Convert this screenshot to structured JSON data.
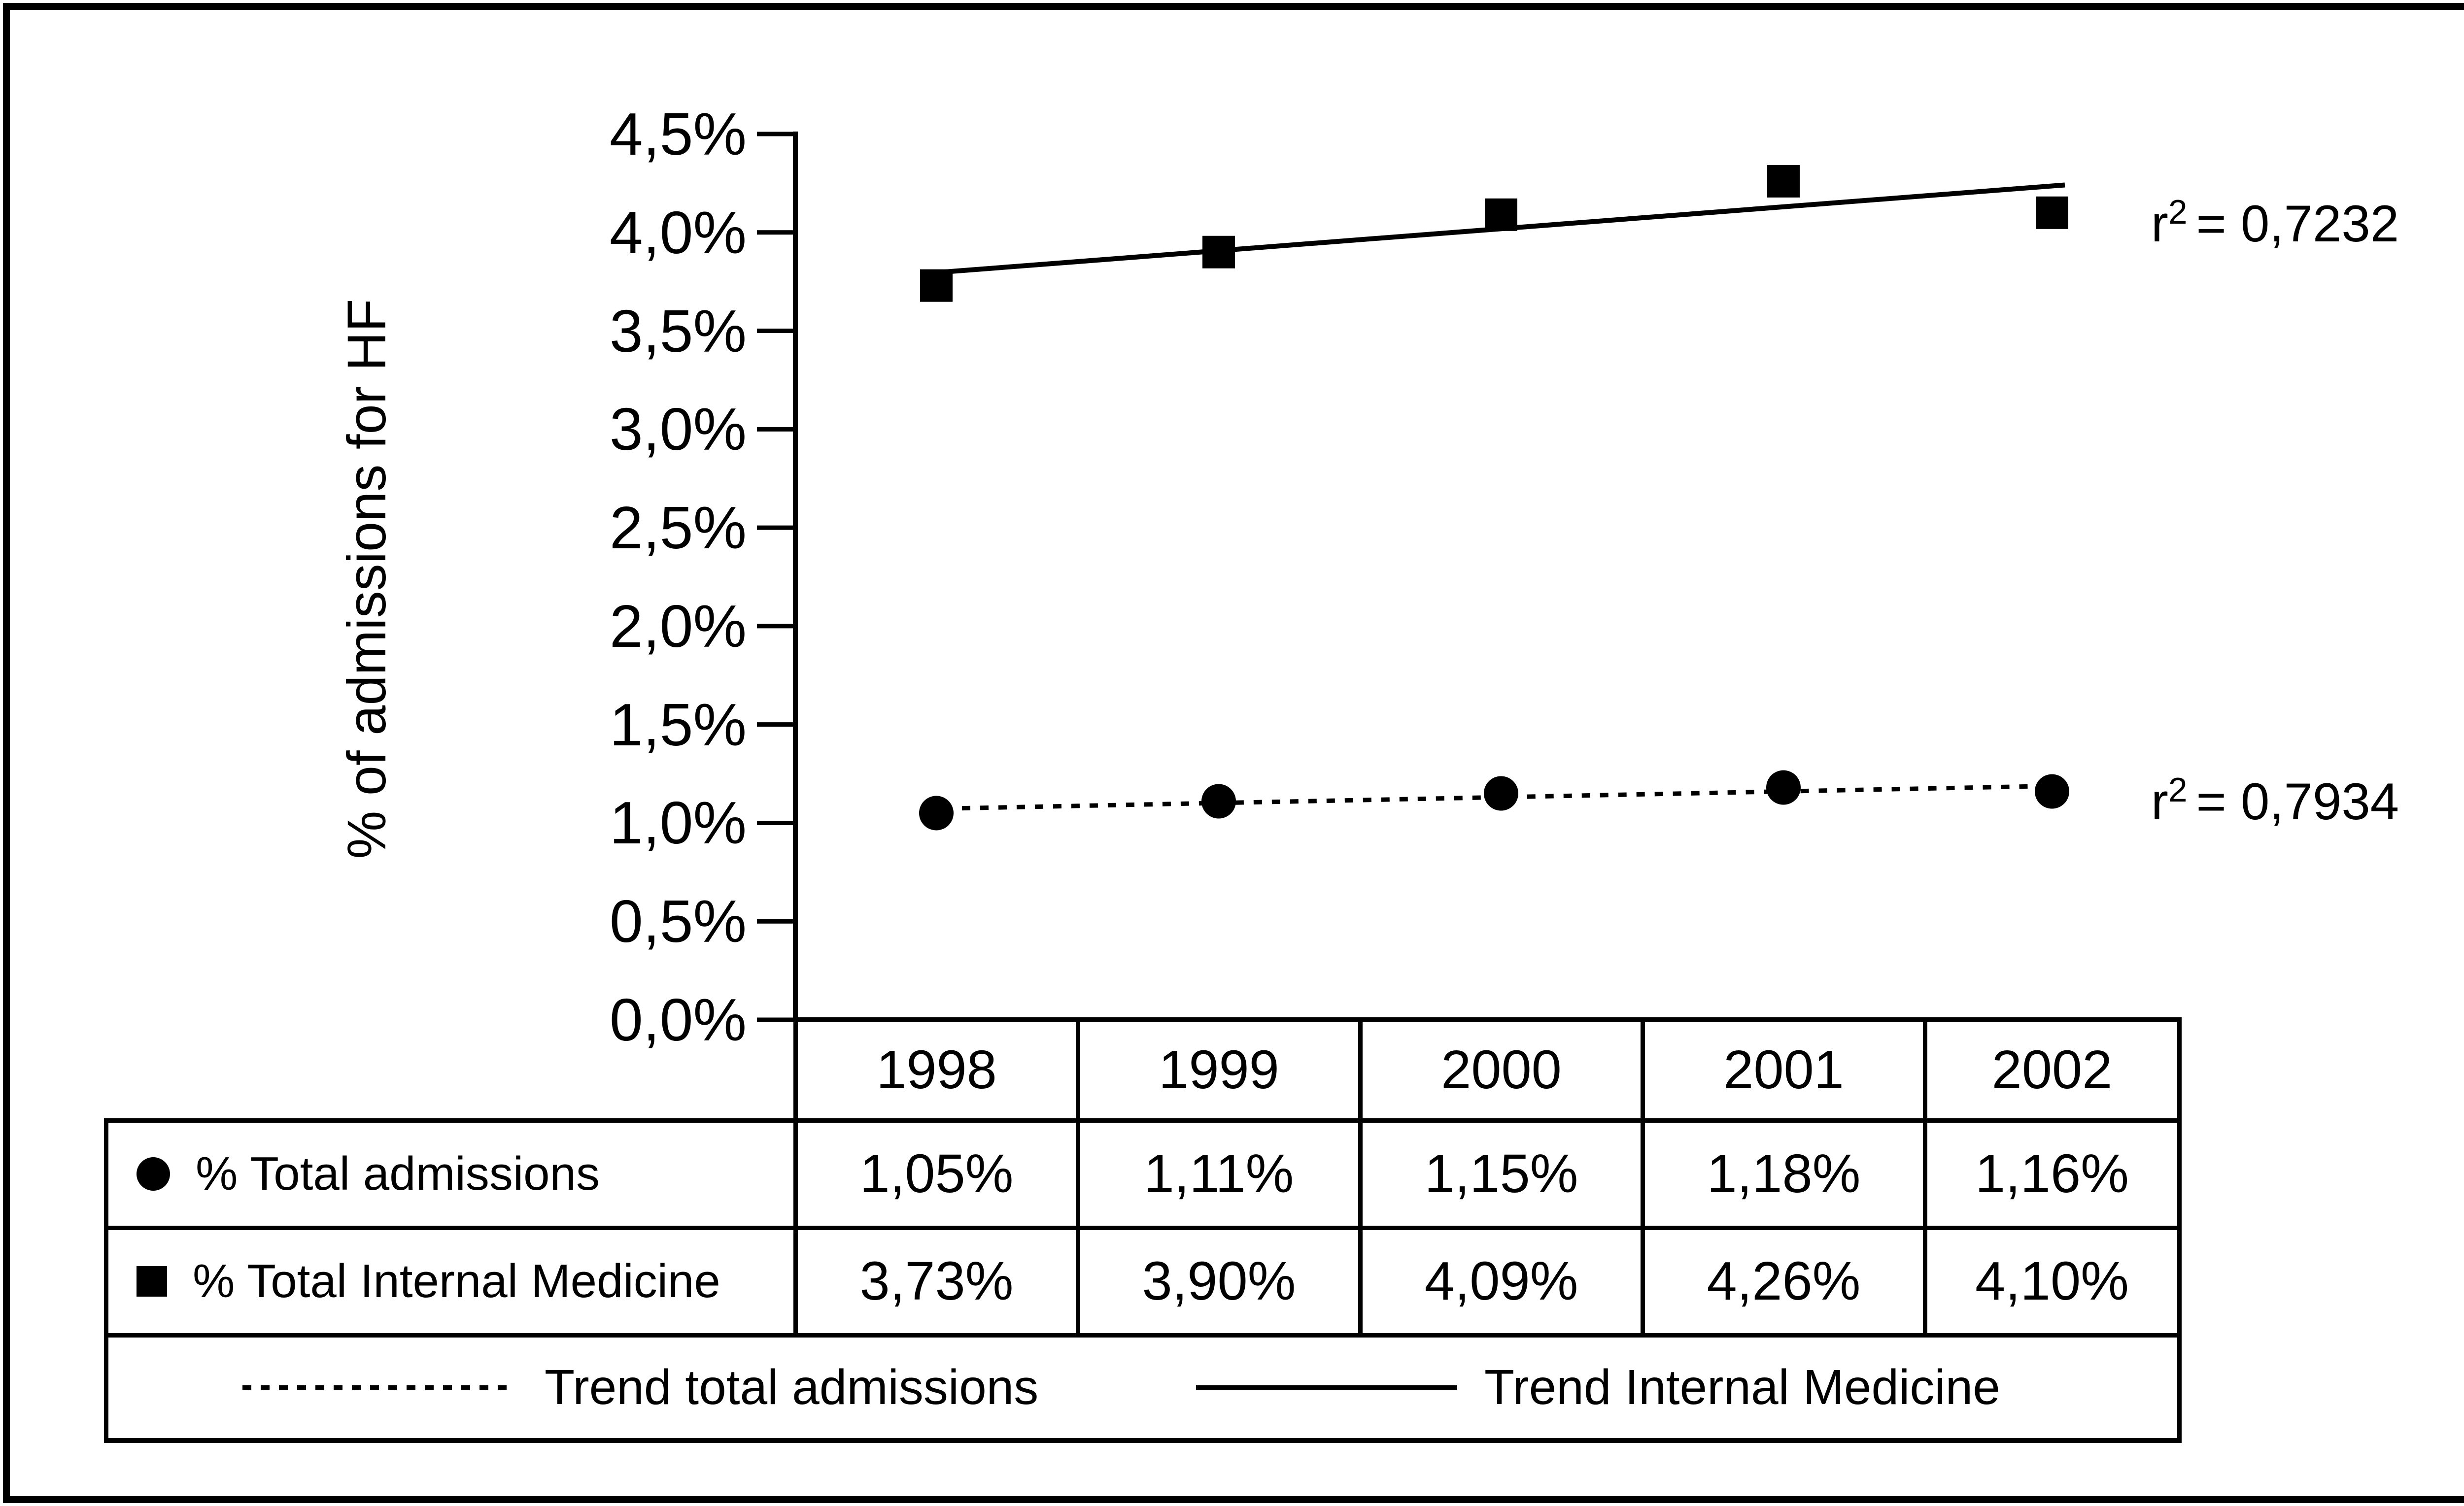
{
  "page": {
    "background": "#ffffff",
    "foreground": "#000000"
  },
  "chart_data": {
    "type": "line",
    "title": "",
    "xlabel": "",
    "ylabel": "% of admissions for HF",
    "ylim": [
      0,
      4.5
    ],
    "y_tick_step": 0.5,
    "y_tick_labels": [
      "4,5%",
      "4,0%",
      "3,5%",
      "3,0%",
      "2,5%",
      "2,0%",
      "1,5%",
      "1,0%",
      "0,5%",
      "0,0%"
    ],
    "grid": false,
    "legend_position": "bottom-table",
    "categories": [
      "1998",
      "1999",
      "2000",
      "2001",
      "2002"
    ],
    "series": [
      {
        "name": "% Total admissions",
        "marker": "circle",
        "line_style": "dashed",
        "values": [
          1.05,
          1.11,
          1.15,
          1.18,
          1.16
        ],
        "value_labels": [
          "1,05%",
          "1,11%",
          "1,15%",
          "1,18%",
          "1,16%"
        ],
        "r_squared": {
          "base": "r",
          "exponent": "2",
          "equals_value": "= 0,7934"
        },
        "trend_label": "Trend total admissions"
      },
      {
        "name": "% Total Internal Medicine",
        "marker": "square",
        "line_style": "solid",
        "values": [
          3.73,
          3.9,
          4.09,
          4.26,
          4.1
        ],
        "value_labels": [
          "3,73%",
          "3,90%",
          "4,09%",
          "4,26%",
          "4,10%"
        ],
        "r_squared": {
          "base": "r",
          "exponent": "2",
          "equals_value": "= 0,7232"
        },
        "trend_label": "Trend Internal Medicine"
      }
    ]
  }
}
